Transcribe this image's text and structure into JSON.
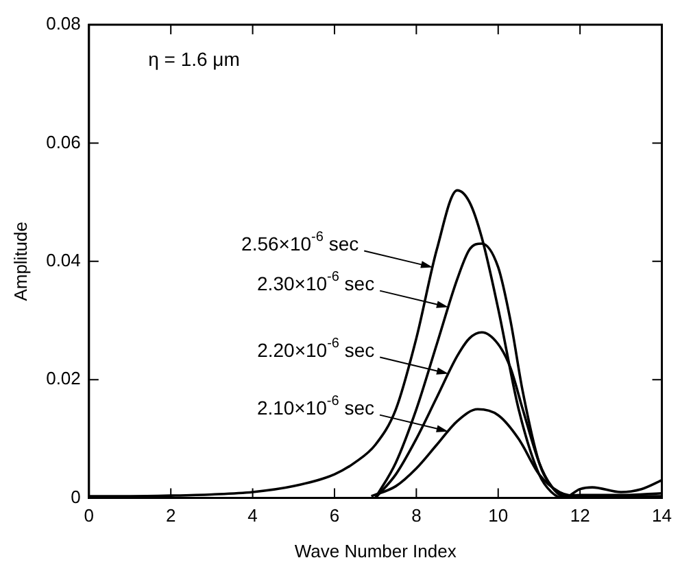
{
  "chart_data": {
    "type": "line",
    "xlabel": "Wave Number Index",
    "ylabel": "Amplitude",
    "xlim": [
      0,
      14
    ],
    "xticks": [
      0,
      2,
      4,
      6,
      8,
      10,
      12,
      14
    ],
    "ylim": [
      0,
      0.08
    ],
    "yticks": [
      0,
      0.02,
      0.04,
      0.06,
      0.08
    ],
    "grid": false,
    "legend": false,
    "marker": "none",
    "line_style": "solid",
    "series": [
      {
        "color": "#000000",
        "x": [
          0,
          1,
          2,
          3,
          4,
          5,
          6,
          6.5,
          7,
          7.5,
          8,
          8.5,
          9,
          9.3,
          9.6,
          10,
          10.5,
          11,
          11.3,
          11.6,
          12,
          12.3,
          13,
          13.5,
          14
        ],
        "values": [
          0.0003,
          0.0003,
          0.0004,
          0.0006,
          0.001,
          0.002,
          0.004,
          0.006,
          0.009,
          0.015,
          0.027,
          0.042,
          0.052,
          0.05,
          0.044,
          0.032,
          0.015,
          0.004,
          0.001,
          0,
          0.0015,
          0.0018,
          0.001,
          0.0015,
          0.003
        ]
      },
      {
        "color": "#000000",
        "x": [
          7,
          7.5,
          8,
          8.5,
          9,
          9.3,
          9.6,
          10,
          10.3,
          10.6,
          11,
          11.3,
          11.6,
          12,
          13,
          14
        ],
        "values": [
          0,
          0.006,
          0.015,
          0.026,
          0.037,
          0.042,
          0.043,
          0.039,
          0.03,
          0.018,
          0.006,
          0.002,
          0.0003,
          0.0005,
          0.0005,
          0.0008
        ]
      },
      {
        "color": "#000000",
        "x": [
          7,
          7.5,
          8,
          8.5,
          9,
          9.3,
          9.6,
          10,
          10.3,
          10.6,
          11,
          11.3,
          11.6,
          12,
          14
        ],
        "values": [
          0,
          0.004,
          0.01,
          0.017,
          0.024,
          0.027,
          0.028,
          0.026,
          0.022,
          0.015,
          0.006,
          0.002,
          0.0003,
          0,
          0
        ]
      },
      {
        "color": "#000000",
        "x": [
          6.9,
          7.5,
          8,
          8.5,
          9,
          9.5,
          10,
          10.5,
          11,
          11.5,
          12,
          14
        ],
        "values": [
          0.0003,
          0.002,
          0.005,
          0.009,
          0.013,
          0.015,
          0.014,
          0.01,
          0.004,
          0.001,
          0.0003,
          0.0003
        ]
      }
    ],
    "annotations": [
      "η = 1.6 μm",
      "2.56×10$^{-6}$ sec",
      "2.30×10$^{-6}$ sec",
      "2.20×10$^{-6}$ sec",
      "2.10×10$^{-6}$ sec"
    ]
  }
}
